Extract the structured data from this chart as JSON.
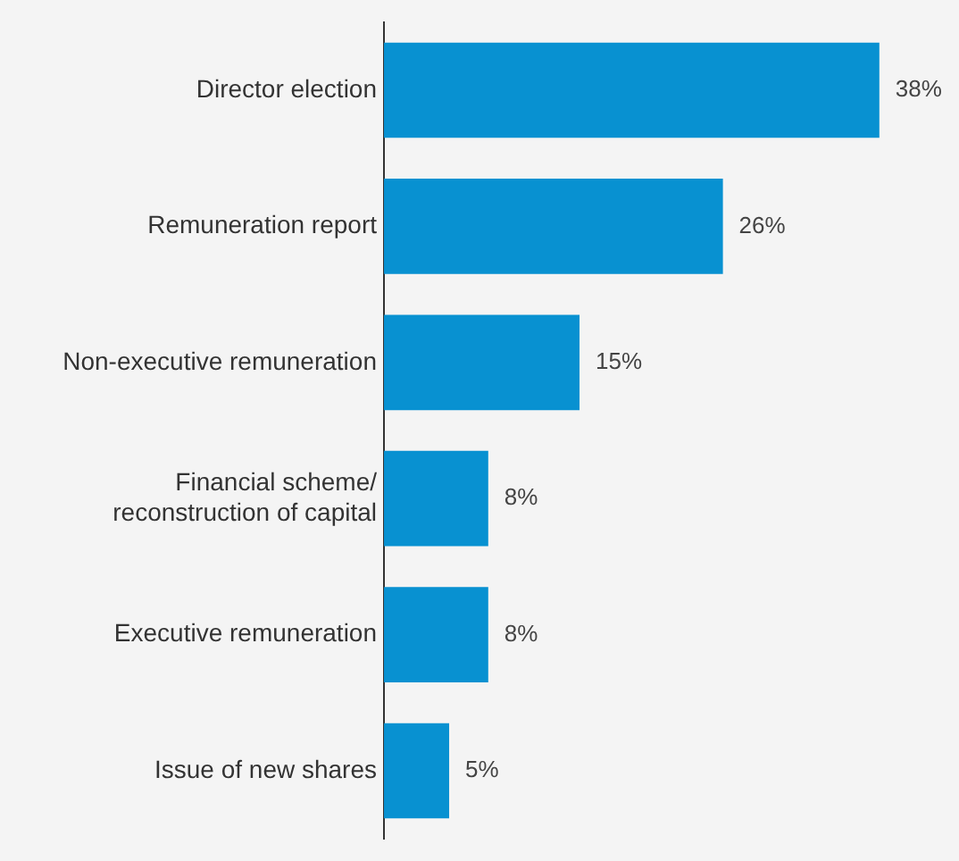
{
  "chart_data": {
    "type": "bar",
    "orientation": "horizontal",
    "categories": [
      "Director election",
      "Remuneration report",
      "Non-executive remuneration",
      "Financial scheme/\nreconstruction of capital",
      "Executive remuneration",
      "Issue of new shares"
    ],
    "values": [
      38,
      26,
      15,
      8,
      8,
      5
    ],
    "value_labels": [
      "38%",
      "26%",
      "15%",
      "8%",
      "8%",
      "5%"
    ],
    "color": "#0891d1"
  }
}
